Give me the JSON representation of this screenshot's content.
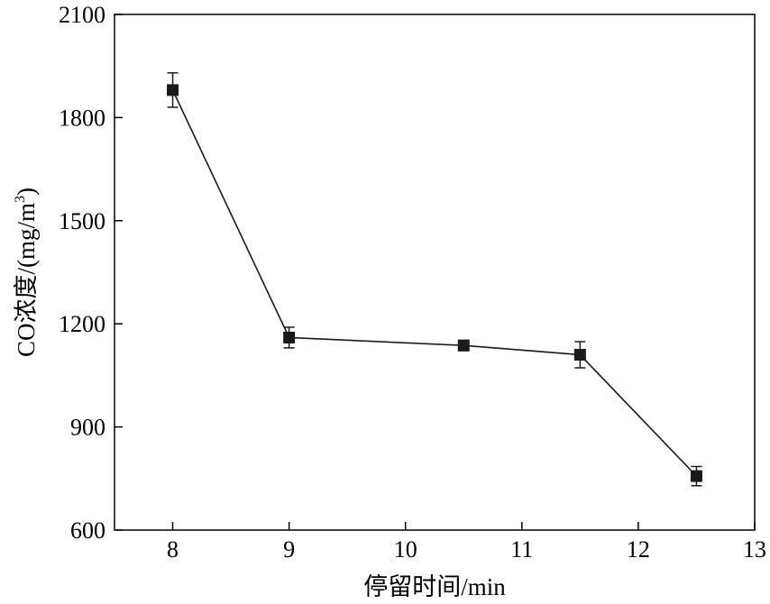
{
  "chart_data": {
    "type": "line",
    "title": "",
    "xlabel": "停留时间/min",
    "ylabel_prefix": "CO浓度/(mg/m",
    "ylabel_sup": "3",
    "ylabel_suffix": ")",
    "xlim": [
      7.5,
      13
    ],
    "ylim": [
      600,
      2100
    ],
    "xticks": [
      8,
      9,
      10,
      11,
      12,
      13
    ],
    "yticks": [
      600,
      900,
      1200,
      1500,
      1800,
      2100
    ],
    "grid": false,
    "legend": "none",
    "series": [
      {
        "x": [
          8,
          9,
          10.5,
          11.5,
          12.5
        ],
        "y": [
          1880,
          1160,
          1137,
          1110,
          757
        ],
        "yerr": [
          50,
          30,
          15,
          38,
          28
        ],
        "marker": "square",
        "color": "#1a1a1a"
      }
    ]
  }
}
